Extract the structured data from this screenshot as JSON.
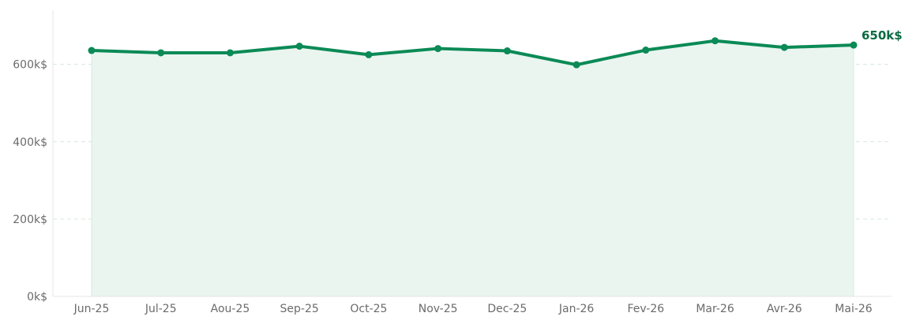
{
  "colors": {
    "line": "#0b8a56",
    "fill": "#eaf5f0",
    "end_label": "#0a6b43",
    "grid": "#d6e6df",
    "axis": "#e4e4e4",
    "tick_text": "#6b6b6b",
    "point": "#0b8a56"
  },
  "chart_data": {
    "type": "area",
    "categories": [
      "Jun-25",
      "Jul-25",
      "Aou-25",
      "Sep-25",
      "Oct-25",
      "Nov-25",
      "Dec-25",
      "Jan-26",
      "Fev-26",
      "Mar-26",
      "Avr-26",
      "Mai-26"
    ],
    "series": [
      {
        "values": [
          636,
          630,
          630,
          647,
          625,
          641,
          635,
          599,
          637,
          661,
          644,
          650
        ]
      }
    ],
    "ylim": [
      0,
      740
    ],
    "yticks": [
      0,
      200,
      400,
      600
    ],
    "ytick_labels": [
      "0k$",
      "200k$",
      "400k$",
      "600k$"
    ],
    "grid": true,
    "grid_style": "dashed-horizontal",
    "end_label": "650k$",
    "markers": true
  }
}
